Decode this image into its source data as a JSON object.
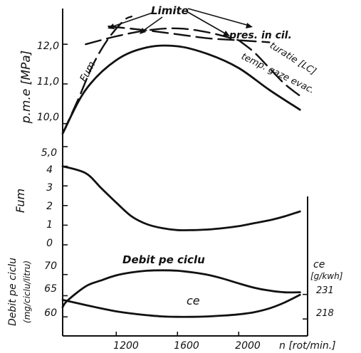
{
  "chart_data": [
    {
      "type": "line",
      "panel": "pme",
      "ylabel": "p.m.e [MPa]",
      "ylim": [
        9.6,
        12.9
      ],
      "yticks": [
        "10,0",
        "11,0",
        "12,0"
      ],
      "ytick_values": [
        10.0,
        11.0,
        12.0
      ],
      "xlim": [
        850,
        2450
      ],
      "series": [
        {
          "name": "",
          "style": "solid",
          "x": [
            850,
            1000,
            1200,
            1400,
            1600,
            1800,
            2000,
            2200,
            2400
          ],
          "y": [
            9.75,
            10.85,
            11.6,
            11.92,
            11.95,
            11.75,
            11.4,
            10.85,
            10.35
          ]
        },
        {
          "name": "Fum",
          "style": "dashed",
          "x": [
            850,
            950,
            1050,
            1150,
            1250,
            1300
          ],
          "y": [
            9.75,
            10.6,
            11.5,
            12.15,
            12.6,
            12.7
          ]
        },
        {
          "name": "pres. in cil.",
          "style": "dashed",
          "x": [
            1150,
            1400,
            1600,
            1800,
            2000,
            2200
          ],
          "y": [
            12.45,
            12.35,
            12.25,
            12.15,
            12.1,
            12.05
          ]
        },
        {
          "name": "turatie [LC]",
          "style": "dashed",
          "x": [
            1000,
            1200,
            1400,
            1600,
            1800,
            2000
          ],
          "y": [
            12.0,
            12.2,
            12.35,
            12.4,
            12.3,
            12.1
          ]
        },
        {
          "name": "temp. gaze evac.",
          "style": "dashed",
          "x": [
            2000,
            2100,
            2200,
            2300,
            2400
          ],
          "y": [
            12.1,
            11.8,
            11.4,
            11.0,
            10.7
          ]
        }
      ],
      "annotations": [
        "Limite"
      ]
    },
    {
      "type": "line",
      "panel": "fum",
      "ylabel": "Fum",
      "ylim": [
        0,
        5
      ],
      "yticks": [
        "0",
        "1",
        "2",
        "3",
        "4",
        "5,0"
      ],
      "ytick_values": [
        0,
        1,
        2,
        3,
        4,
        5
      ],
      "xlim": [
        850,
        2450
      ],
      "series": [
        {
          "name": "",
          "x": [
            850,
            1000,
            1100,
            1200,
            1300,
            1400,
            1500,
            1600,
            1700,
            1800,
            1900,
            2000,
            2100,
            2200,
            2300,
            2400
          ],
          "y": [
            4.0,
            3.65,
            2.9,
            2.15,
            1.45,
            1.05,
            0.85,
            0.75,
            0.75,
            0.78,
            0.85,
            0.95,
            1.1,
            1.25,
            1.45,
            1.7
          ]
        }
      ]
    },
    {
      "type": "line",
      "panel": "debit",
      "ylabel": "Debit pe ciclu",
      "ylabel2": "(mg/ciclu/litru)",
      "ylim": [
        55.5,
        75
      ],
      "yticks": [
        "60",
        "65",
        "70"
      ],
      "ytick_values": [
        60,
        65,
        70
      ],
      "y2label": "ce",
      "y2label2": "[g/kwh]",
      "y2ticks": [
        "231",
        "218"
      ],
      "y2tick_values": [
        65.3,
        59.5
      ],
      "xlabel": "n [rot/min.]",
      "xticks": [
        "1200",
        "1600",
        "2000"
      ],
      "xtick_values": [
        1200,
        1600,
        2000
      ],
      "xlim": [
        850,
        2450
      ],
      "series": [
        {
          "name": "Debit pe ciclu",
          "x": [
            850,
            880,
            1000,
            1100,
            1200,
            1300,
            1400,
            1500,
            1600,
            1700,
            1800,
            1900,
            2000,
            2100,
            2200,
            2300,
            2400
          ],
          "y": [
            62.3,
            63.8,
            67.2,
            68.6,
            69.8,
            70.5,
            70.9,
            71.0,
            70.9,
            70.5,
            69.9,
            69.0,
            67.9,
            66.9,
            66.2,
            65.8,
            65.8
          ]
        },
        {
          "name": "ce",
          "x": [
            850,
            1000,
            1100,
            1200,
            1300,
            1400,
            1500,
            1600,
            1700,
            1800,
            1900,
            2000,
            2100,
            2200,
            2300,
            2400
          ],
          "y": [
            64.0,
            62.8,
            62.0,
            61.3,
            60.8,
            60.4,
            60.1,
            60.0,
            60.0,
            60.1,
            60.3,
            60.6,
            61.1,
            62.0,
            63.4,
            65.2
          ]
        }
      ]
    }
  ]
}
